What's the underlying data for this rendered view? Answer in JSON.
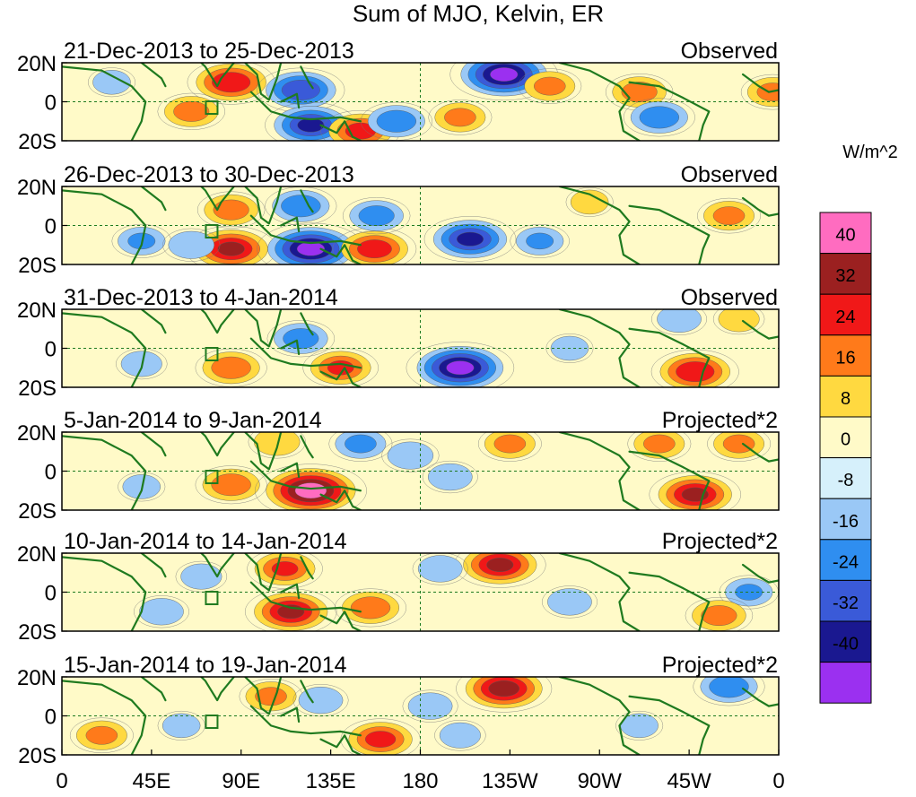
{
  "chart_data": {
    "type": "heatmap",
    "title": "Sum of MJO, Kelvin, ER",
    "units_label": "W/m^2",
    "x_ticks": [
      {
        "lon": 0,
        "label": "0"
      },
      {
        "lon": 45,
        "label": "45E"
      },
      {
        "lon": 90,
        "label": "90E"
      },
      {
        "lon": 135,
        "label": "135E"
      },
      {
        "lon": 180,
        "label": "180"
      },
      {
        "lon": 225,
        "label": "135W"
      },
      {
        "lon": 270,
        "label": "90W"
      },
      {
        "lon": 315,
        "label": "45W"
      },
      {
        "lon": 360,
        "label": "0"
      }
    ],
    "y_ticks": [
      {
        "lat": 20,
        "label": "20N"
      },
      {
        "lat": 0,
        "label": "0"
      },
      {
        "lat": -20,
        "label": "20S"
      }
    ],
    "lon_range": [
      0,
      360
    ],
    "lat_range": [
      -20,
      20
    ],
    "colorbar": {
      "colors": [
        "#9b30f0",
        "#1a1890",
        "#3a5ad8",
        "#2f8ef0",
        "#9ac8f6",
        "#d6f0fb",
        "#fffac8",
        "#ffd940",
        "#ff7a1a",
        "#f01818",
        "#9b2020",
        "#ff6cc0"
      ],
      "labels": [
        "-40",
        "-32",
        "-24",
        "-16",
        "-8",
        "0",
        "8",
        "16",
        "24",
        "32",
        "40"
      ]
    },
    "panels": [
      {
        "date_range": "21-Dec-2013 to 25-Dec-2013",
        "tag": "Observed",
        "features": [
          {
            "lon": 85,
            "lat": 10,
            "value": 30
          },
          {
            "lon": 65,
            "lat": -5,
            "value": 20
          },
          {
            "lon": 120,
            "lat": 6,
            "value": -30
          },
          {
            "lon": 125,
            "lat": -12,
            "value": -32
          },
          {
            "lon": 150,
            "lat": -15,
            "value": 26
          },
          {
            "lon": 168,
            "lat": -10,
            "value": -22
          },
          {
            "lon": 200,
            "lat": -8,
            "value": 18
          },
          {
            "lon": 222,
            "lat": 14,
            "value": -40
          },
          {
            "lon": 245,
            "lat": 8,
            "value": 18
          },
          {
            "lon": 290,
            "lat": 5,
            "value": 20
          },
          {
            "lon": 300,
            "lat": -8,
            "value": -22
          },
          {
            "lon": 357,
            "lat": 5,
            "value": 18
          },
          {
            "lon": 25,
            "lat": 10,
            "value": -10
          }
        ]
      },
      {
        "date_range": "26-Dec-2013 to 30-Dec-2013",
        "tag": "Observed",
        "features": [
          {
            "lon": 85,
            "lat": 8,
            "value": 20
          },
          {
            "lon": 85,
            "lat": -12,
            "value": 32
          },
          {
            "lon": 125,
            "lat": -12,
            "value": -40
          },
          {
            "lon": 157,
            "lat": -12,
            "value": 28
          },
          {
            "lon": 120,
            "lat": 10,
            "value": -22
          },
          {
            "lon": 158,
            "lat": 5,
            "value": -20
          },
          {
            "lon": 205,
            "lat": -7,
            "value": -32
          },
          {
            "lon": 240,
            "lat": -8,
            "value": -16
          },
          {
            "lon": 335,
            "lat": 5,
            "value": 18
          },
          {
            "lon": 40,
            "lat": -8,
            "value": -16
          },
          {
            "lon": 65,
            "lat": -10,
            "value": -15
          },
          {
            "lon": 265,
            "lat": 12,
            "value": 10
          }
        ]
      },
      {
        "date_range": "31-Dec-2013 to 4-Jan-2014",
        "tag": "Observed",
        "features": [
          {
            "lon": 85,
            "lat": -10,
            "value": 22
          },
          {
            "lon": 120,
            "lat": 5,
            "value": -20
          },
          {
            "lon": 140,
            "lat": -10,
            "value": 24
          },
          {
            "lon": 200,
            "lat": -10,
            "value": -40
          },
          {
            "lon": 318,
            "lat": -12,
            "value": 30
          },
          {
            "lon": 340,
            "lat": 15,
            "value": 12
          },
          {
            "lon": 310,
            "lat": 15,
            "value": -14
          },
          {
            "lon": 40,
            "lat": -8,
            "value": -12
          },
          {
            "lon": 255,
            "lat": 0,
            "value": -10
          }
        ]
      },
      {
        "date_range": "5-Jan-2014 to 9-Jan-2014",
        "tag": "Projected*2",
        "features": [
          {
            "lon": 85,
            "lat": -7,
            "value": 22
          },
          {
            "lon": 125,
            "lat": -10,
            "value": 42
          },
          {
            "lon": 175,
            "lat": 8,
            "value": -15
          },
          {
            "lon": 225,
            "lat": 14,
            "value": 18
          },
          {
            "lon": 195,
            "lat": -3,
            "value": -14
          },
          {
            "lon": 318,
            "lat": -12,
            "value": 32
          },
          {
            "lon": 300,
            "lat": 14,
            "value": 18
          },
          {
            "lon": 150,
            "lat": 14,
            "value": -18
          },
          {
            "lon": 108,
            "lat": 15,
            "value": 15
          },
          {
            "lon": 40,
            "lat": -8,
            "value": -10
          },
          {
            "lon": 340,
            "lat": 14,
            "value": 18
          }
        ]
      },
      {
        "date_range": "10-Jan-2014 to 14-Jan-2014",
        "tag": "Projected*2",
        "features": [
          {
            "lon": 115,
            "lat": -10,
            "value": 32
          },
          {
            "lon": 155,
            "lat": -8,
            "value": 22
          },
          {
            "lon": 112,
            "lat": 12,
            "value": 24
          },
          {
            "lon": 220,
            "lat": 14,
            "value": 32
          },
          {
            "lon": 255,
            "lat": -5,
            "value": -14
          },
          {
            "lon": 345,
            "lat": 0,
            "value": -16
          },
          {
            "lon": 330,
            "lat": -12,
            "value": 20
          },
          {
            "lon": 70,
            "lat": 8,
            "value": -12
          },
          {
            "lon": 50,
            "lat": -10,
            "value": -14
          },
          {
            "lon": 190,
            "lat": 12,
            "value": -14
          }
        ]
      },
      {
        "date_range": "15-Jan-2014 to 19-Jan-2014",
        "tag": "Projected*2",
        "features": [
          {
            "lon": 160,
            "lat": -12,
            "value": 26
          },
          {
            "lon": 185,
            "lat": 5,
            "value": -14
          },
          {
            "lon": 222,
            "lat": 14,
            "value": 34
          },
          {
            "lon": 105,
            "lat": 10,
            "value": 18
          },
          {
            "lon": 20,
            "lat": -10,
            "value": 18
          },
          {
            "lon": 130,
            "lat": 8,
            "value": -14
          },
          {
            "lon": 335,
            "lat": 15,
            "value": -22
          },
          {
            "lon": 200,
            "lat": -10,
            "value": -12
          },
          {
            "lon": 290,
            "lat": -5,
            "value": -10
          },
          {
            "lon": 60,
            "lat": -5,
            "value": -10
          }
        ]
      }
    ]
  }
}
